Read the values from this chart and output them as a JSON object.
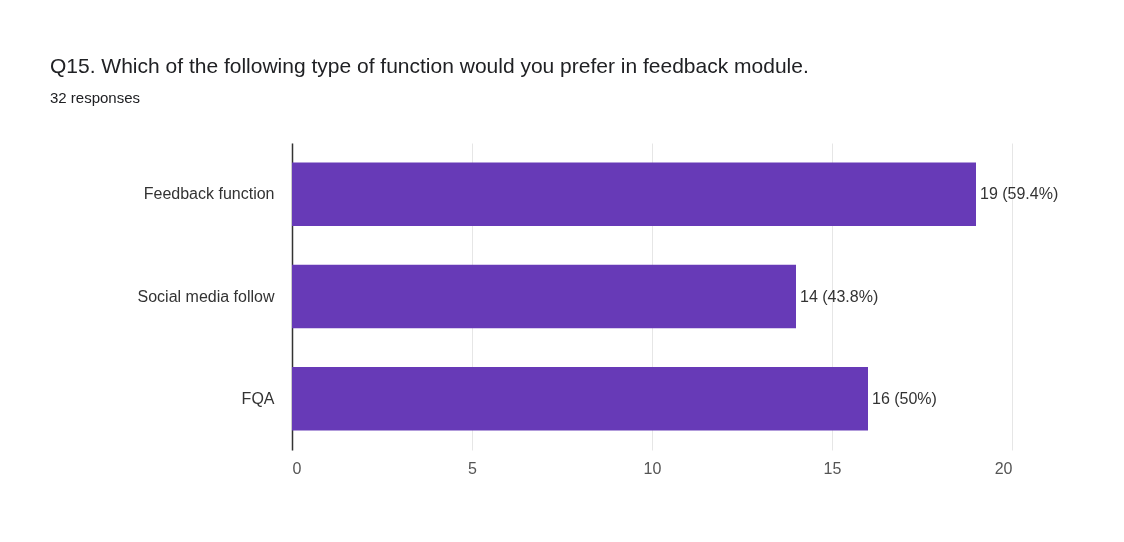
{
  "chart_data": {
    "type": "bar",
    "orientation": "horizontal",
    "title": "Q15.  Which of the following type of function would you prefer in feedback module.",
    "subtitle": "32 responses",
    "categories": [
      "Feedback function",
      "Social media follow",
      "FQA"
    ],
    "values": [
      19,
      14,
      16
    ],
    "color": "#673ab7",
    "value_labels": [
      "19 (59.4%)",
      "14 (43.8%)",
      "16 (50%)"
    ],
    "xlim": [
      0,
      20
    ],
    "xticks": [
      0,
      5,
      10,
      15,
      20
    ],
    "grid": "x"
  }
}
